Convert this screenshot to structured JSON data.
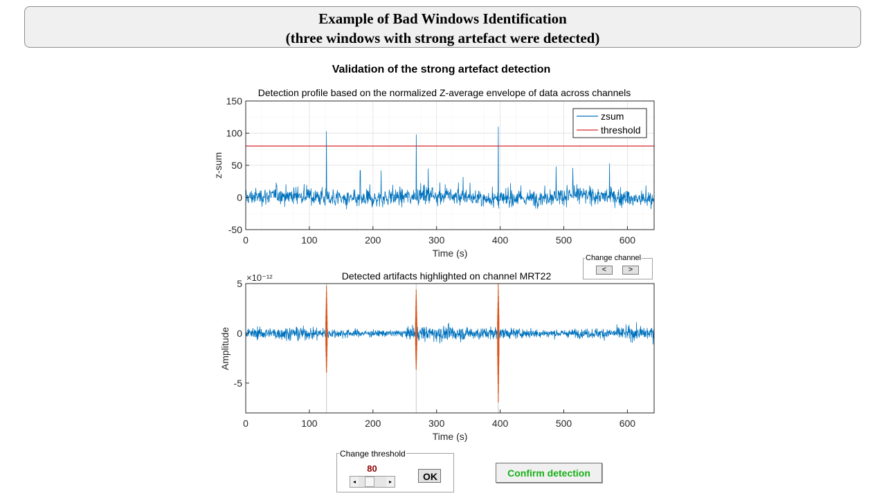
{
  "banner": {
    "line1": "Example of Bad Windows Identification",
    "line2": "(three windows with strong artefact were detected)"
  },
  "figure_title": "Validation of the strong artefact detection",
  "change_channel": {
    "label": "Change channel",
    "prev": "<",
    "next": ">"
  },
  "threshold_panel": {
    "label": "Change threshold",
    "value": "80",
    "slider_fraction": 0.35,
    "ok": "OK"
  },
  "confirm_label": "Confirm detection",
  "colors": {
    "signal": "#0072bd",
    "threshold": "#d62728",
    "artifact": "#d95319",
    "confirm_text": "#16b016"
  },
  "chart_data": [
    {
      "type": "line",
      "title": "Detection profile based on the normalized Z-average envelope of data across channels",
      "xlabel": "Time (s)",
      "ylabel": "z-sum",
      "xlim": [
        0,
        642
      ],
      "ylim": [
        -50,
        150
      ],
      "xticks": [
        0,
        100,
        200,
        300,
        400,
        500,
        600
      ],
      "yticks": [
        -50,
        0,
        50,
        100,
        150
      ],
      "legend": {
        "position": "top-right",
        "entries": [
          "zsum",
          "threshold"
        ]
      },
      "threshold": 80,
      "spikes": [
        {
          "t": 127,
          "value": 103
        },
        {
          "t": 268,
          "value": 98
        },
        {
          "t": 397,
          "value": 110
        }
      ],
      "minor_peaks": [
        {
          "t": 180,
          "value": 42
        },
        {
          "t": 213,
          "value": 42
        },
        {
          "t": 287,
          "value": 45
        },
        {
          "t": 488,
          "value": 48
        },
        {
          "t": 514,
          "value": 46
        },
        {
          "t": 572,
          "value": 53
        }
      ]
    },
    {
      "type": "line",
      "title": "Detected artifacts highlighted on channel MRT22",
      "xlabel": "Time (s)",
      "ylabel": "Amplitude",
      "scale_exponent": "×10⁻¹²",
      "xlim": [
        0,
        642
      ],
      "ylim": [
        -8,
        5
      ],
      "xticks": [
        0,
        100,
        200,
        300,
        400,
        500,
        600
      ],
      "yticks": [
        -5,
        0,
        5
      ],
      "artifact_windows": [
        {
          "t": 127,
          "max": 4.8,
          "min": -4.2
        },
        {
          "t": 268,
          "max": 4.4,
          "min": -3.9
        },
        {
          "t": 397,
          "max": 5.0,
          "min": -7.4
        }
      ]
    }
  ]
}
